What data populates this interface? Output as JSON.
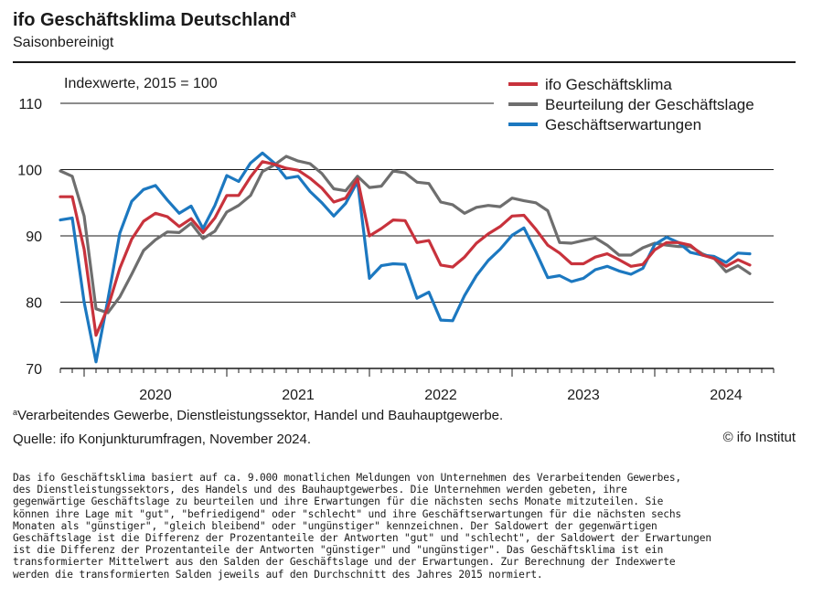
{
  "header": {
    "title": "ifo Geschäftsklima Deutschland",
    "title_footnote_mark": "a",
    "subtitle": "Saisonbereinigt"
  },
  "chart_data": {
    "type": "line",
    "title": "ifo Geschäftsklima Deutschland",
    "subtitle": "Saisonbereinigt",
    "unit_label": "Indexwerte, 2015 = 100",
    "ylim": [
      70,
      110
    ],
    "yticks": [
      70,
      80,
      90,
      100,
      110
    ],
    "x_tick_labels": [
      "2020",
      "2021",
      "2022",
      "2023",
      "2024"
    ],
    "x_start": "2019-11",
    "x_end": "2024-11",
    "grid": true,
    "legend_position": "top-right",
    "series": [
      {
        "name": "ifo Geschäftsklima",
        "color": "#c8323c",
        "values": [
          95.9,
          95.9,
          88.0,
          75.0,
          79.2,
          85.1,
          89.5,
          92.2,
          93.4,
          92.9,
          91.4,
          92.6,
          90.5,
          92.7,
          96.1,
          96.1,
          98.9,
          101.2,
          100.8,
          100.2,
          99.9,
          98.7,
          97.2,
          95.1,
          95.7,
          98.6,
          90.0,
          91.1,
          92.4,
          92.3,
          89.0,
          89.3,
          85.6,
          85.3,
          86.8,
          88.9,
          90.3,
          91.4,
          93.0,
          93.1,
          91.0,
          88.6,
          87.4,
          85.8,
          85.8,
          86.8,
          87.3,
          86.4,
          85.4,
          85.7,
          87.9,
          89.0,
          89.0,
          88.6,
          87.1,
          86.6,
          85.4,
          86.4,
          85.6
        ],
        "x_months_from_start": [
          0,
          1,
          2,
          3,
          4,
          5,
          6,
          7,
          8,
          9,
          10,
          11,
          12,
          13,
          14,
          15,
          16,
          17,
          18,
          19,
          20,
          21,
          22,
          23,
          24,
          25,
          26,
          27,
          28,
          29,
          30,
          31,
          32,
          33,
          34,
          35,
          36,
          37,
          38,
          39,
          40,
          41,
          42,
          43,
          44,
          45,
          46,
          47,
          48,
          49,
          50,
          51,
          52,
          53,
          54,
          55,
          56,
          57,
          58
        ]
      },
      {
        "name": "Beurteilung der Geschäftslage",
        "color": "#6e6e6e",
        "values": [
          99.8,
          99.0,
          93.0,
          79.0,
          78.4,
          80.8,
          84.2,
          87.8,
          89.4,
          90.6,
          90.5,
          91.9,
          89.6,
          90.7,
          93.6,
          94.6,
          96.1,
          99.7,
          100.7,
          102.0,
          101.3,
          100.9,
          99.4,
          97.1,
          96.8,
          99.0,
          97.3,
          97.5,
          99.8,
          99.5,
          98.1,
          97.9,
          95.1,
          94.7,
          93.4,
          94.3,
          94.6,
          94.4,
          95.7,
          95.3,
          95.0,
          93.8,
          89.0,
          88.9,
          89.3,
          89.7,
          88.6,
          87.1,
          87.1,
          88.2,
          88.9,
          88.6,
          88.4,
          88.4,
          87.3,
          86.6,
          84.6,
          85.5,
          84.3
        ],
        "x_months_from_start": [
          0,
          1,
          2,
          3,
          4,
          5,
          6,
          7,
          8,
          9,
          10,
          11,
          12,
          13,
          14,
          15,
          16,
          17,
          18,
          19,
          20,
          21,
          22,
          23,
          24,
          25,
          26,
          27,
          28,
          29,
          30,
          31,
          32,
          33,
          34,
          35,
          36,
          37,
          38,
          39,
          40,
          41,
          42,
          43,
          44,
          45,
          46,
          47,
          48,
          49,
          50,
          51,
          52,
          53,
          54,
          55,
          56,
          57,
          58
        ]
      },
      {
        "name": "Geschäftserwartungen",
        "color": "#1c78c0",
        "values": [
          92.4,
          92.7,
          80.0,
          71.0,
          80.4,
          90.4,
          95.2,
          97.0,
          97.6,
          95.4,
          93.4,
          94.5,
          91.1,
          94.6,
          99.1,
          98.2,
          101.0,
          102.5,
          101.0,
          98.7,
          99.0,
          96.7,
          95.0,
          93.0,
          94.9,
          98.2,
          83.6,
          85.5,
          85.8,
          85.7,
          80.6,
          81.5,
          77.3,
          77.2,
          81.0,
          84.0,
          86.3,
          88.0,
          90.1,
          91.2,
          87.6,
          83.7,
          84.0,
          83.1,
          83.6,
          84.9,
          85.4,
          84.7,
          84.2,
          85.1,
          88.7,
          89.8,
          89.0,
          87.5,
          87.1,
          86.9,
          86.0,
          87.4,
          87.3
        ],
        "x_months_from_start": [
          0,
          1,
          2,
          3,
          4,
          5,
          6,
          7,
          8,
          9,
          10,
          11,
          12,
          13,
          14,
          15,
          16,
          17,
          18,
          19,
          20,
          21,
          22,
          23,
          24,
          25,
          26,
          27,
          28,
          29,
          30,
          31,
          32,
          33,
          34,
          35,
          36,
          37,
          38,
          39,
          40,
          41,
          42,
          43,
          44,
          45,
          46,
          47,
          48,
          49,
          50,
          51,
          52,
          53,
          54,
          55,
          56,
          57,
          58
        ]
      }
    ]
  },
  "footer": {
    "footnote_mark": "a",
    "footnote": "Verarbeitendes Gewerbe, Dienstleistungssektor, Handel und Bauhauptgewerbe.",
    "source": "Quelle: ifo Konjunkturumfragen, November 2024.",
    "copyright": "© ifo Institut"
  },
  "description": [
    "Das ifo Geschäftsklima basiert auf ca. 9.000 monatlichen Meldungen von Unternehmen des Verarbeitenden Gewerbes,",
    "des Dienstleistungssektors, des Handels und des Bauhauptgewerbes. Die Unternehmen werden gebeten, ihre",
    "gegenwärtige Geschäftslage zu beurteilen und ihre Erwartungen für die nächsten sechs Monate mitzuteilen. Sie",
    "können ihre Lage mit \"gut\", \"befriedigend\" oder \"schlecht\" und ihre Geschäftserwartungen für die nächsten sechs",
    "Monaten als \"günstiger\", \"gleich bleibend\" oder \"ungünstiger\" kennzeichnen. Der Saldowert der gegenwärtigen",
    "Geschäftslage ist die Differenz der Prozentanteile der Antworten \"gut\" und \"schlecht\", der Saldowert der Erwartungen",
    "ist die Differenz der Prozentanteile der Antworten \"günstiger\" und \"ungünstiger\". Das Geschäftsklima ist ein",
    "transformierter Mittelwert aus den Salden der Geschäftslage und der Erwartungen. Zur Berechnung der Indexwerte",
    "werden die transformierten Salden jeweils auf den Durchschnitt des Jahres 2015 normiert."
  ]
}
